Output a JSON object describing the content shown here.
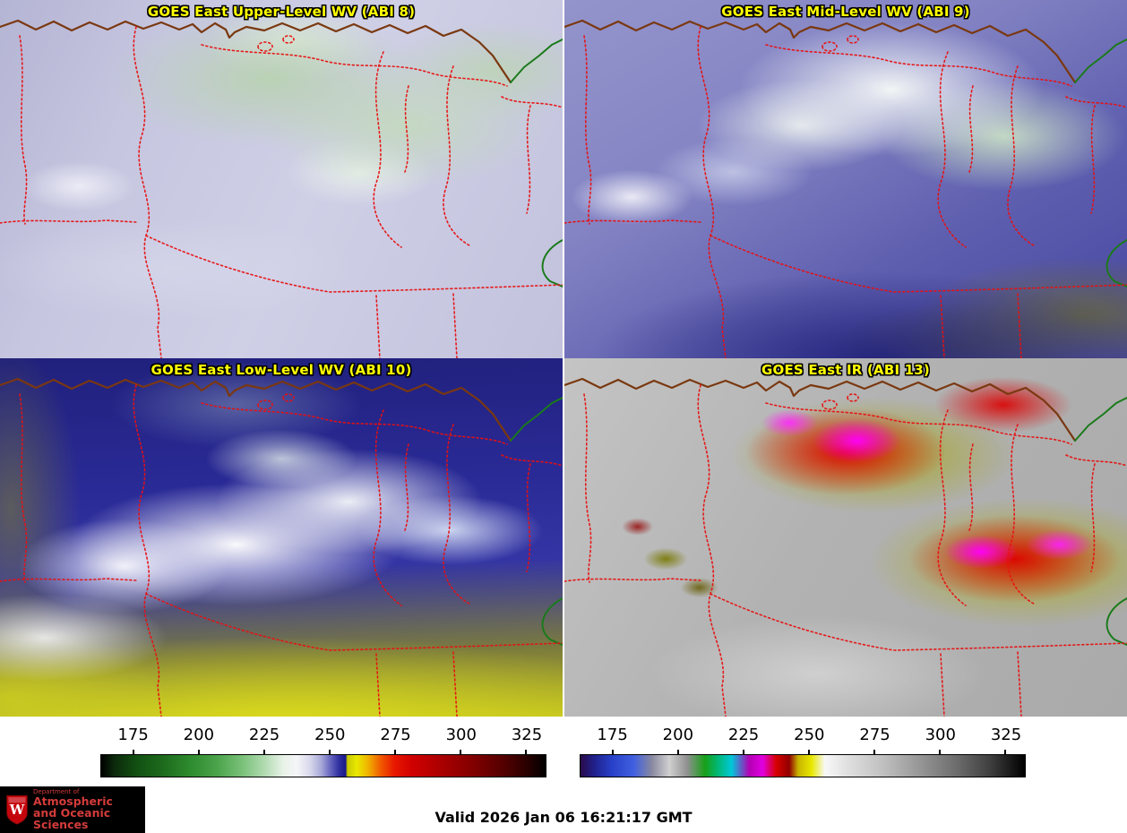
{
  "panels": [
    {
      "title": "GOES East Upper-Level WV (ABI 8)"
    },
    {
      "title": "GOES East Mid-Level WV (ABI 9)"
    },
    {
      "title": "GOES East Low-Level WV (ABI 10)"
    },
    {
      "title": "GOES East IR (ABI 13)"
    }
  ],
  "colorbars": {
    "left": {
      "name": "water-vapor-brightness-temperature-scale",
      "ticks": [
        "175",
        "200",
        "225",
        "250",
        "275",
        "300",
        "325"
      ]
    },
    "right": {
      "name": "ir-brightness-temperature-scale",
      "ticks": [
        "175",
        "200",
        "225",
        "250",
        "275",
        "300",
        "325"
      ]
    }
  },
  "footer": {
    "valid_text": "Valid 2026 Jan 06 16:21:17 GMT",
    "logo": {
      "crest_letter": "W",
      "line1": "Department of",
      "line2": "Atmospheric",
      "line3": "and Oceanic Sciences"
    }
  },
  "colors": {
    "title_yellow": "#ffff00",
    "border_red_dotted": "#e81010",
    "border_green": "#1a7a1a",
    "border_brown": "#7a3810",
    "logo_red": "#d43b3b"
  }
}
